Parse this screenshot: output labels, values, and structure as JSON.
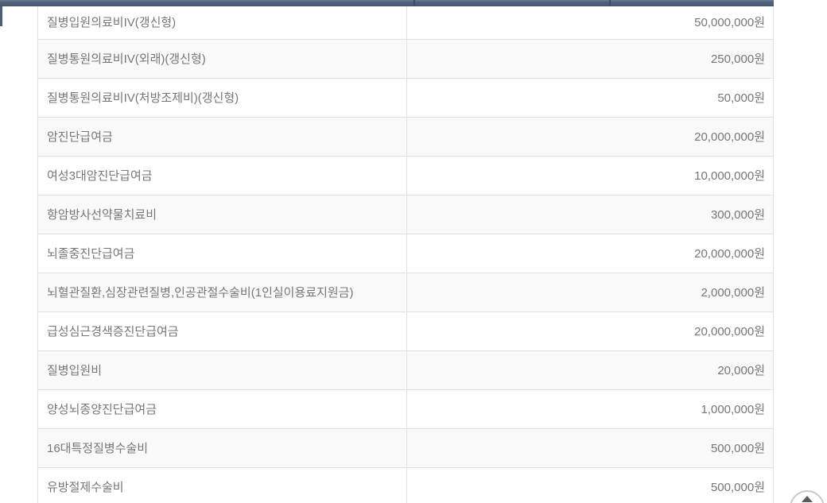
{
  "header_bar": {
    "description": "bottom sliver of dark table header row",
    "color": "#4c5d77",
    "divider_color": "#3e4d64"
  },
  "table": {
    "columns": [
      {
        "name": "coverage-name"
      },
      {
        "name": "coverage-amount"
      }
    ],
    "rows": [
      {
        "label": "질병입원의료비IV(갱신형)",
        "amount": "50,000,000원"
      },
      {
        "label": "질병통원의료비IV(외래)(갱신형)",
        "amount": "250,000원"
      },
      {
        "label": "질병통원의료비IV(처방조제비)(갱신형)",
        "amount": "50,000원"
      },
      {
        "label": "암진단급여금",
        "amount": "20,000,000원"
      },
      {
        "label": "여성3대암진단급여금",
        "amount": "10,000,000원"
      },
      {
        "label": "항암방사선약물치료비",
        "amount": "300,000원"
      },
      {
        "label": "뇌졸중진단급여금",
        "amount": "20,000,000원"
      },
      {
        "label": "뇌혈관질환,심장관련질병,인공관절수술비(1인실이용료지원금)",
        "amount": "2,000,000원"
      },
      {
        "label": "급성심근경색증진단급여금",
        "amount": "20,000,000원"
      },
      {
        "label": "질병입원비",
        "amount": "20,000원"
      },
      {
        "label": "양성뇌종양진단급여금",
        "amount": "1,000,000원"
      },
      {
        "label": "16대특정질병수술비",
        "amount": "500,000원"
      },
      {
        "label": "유방절제수술비",
        "amount": "500,000원"
      }
    ]
  },
  "scroll_top_button": {
    "icon": "arrow-up-icon"
  },
  "colors": {
    "row_alt_background": "#f9f9f9",
    "row_background": "#ffffff",
    "border": "#e1e1e1",
    "text": "#767676",
    "header_bar": "#4c5d77",
    "scroll_button_border": "#c9c9c9",
    "scroll_button_arrow": "#5a5a5a"
  }
}
